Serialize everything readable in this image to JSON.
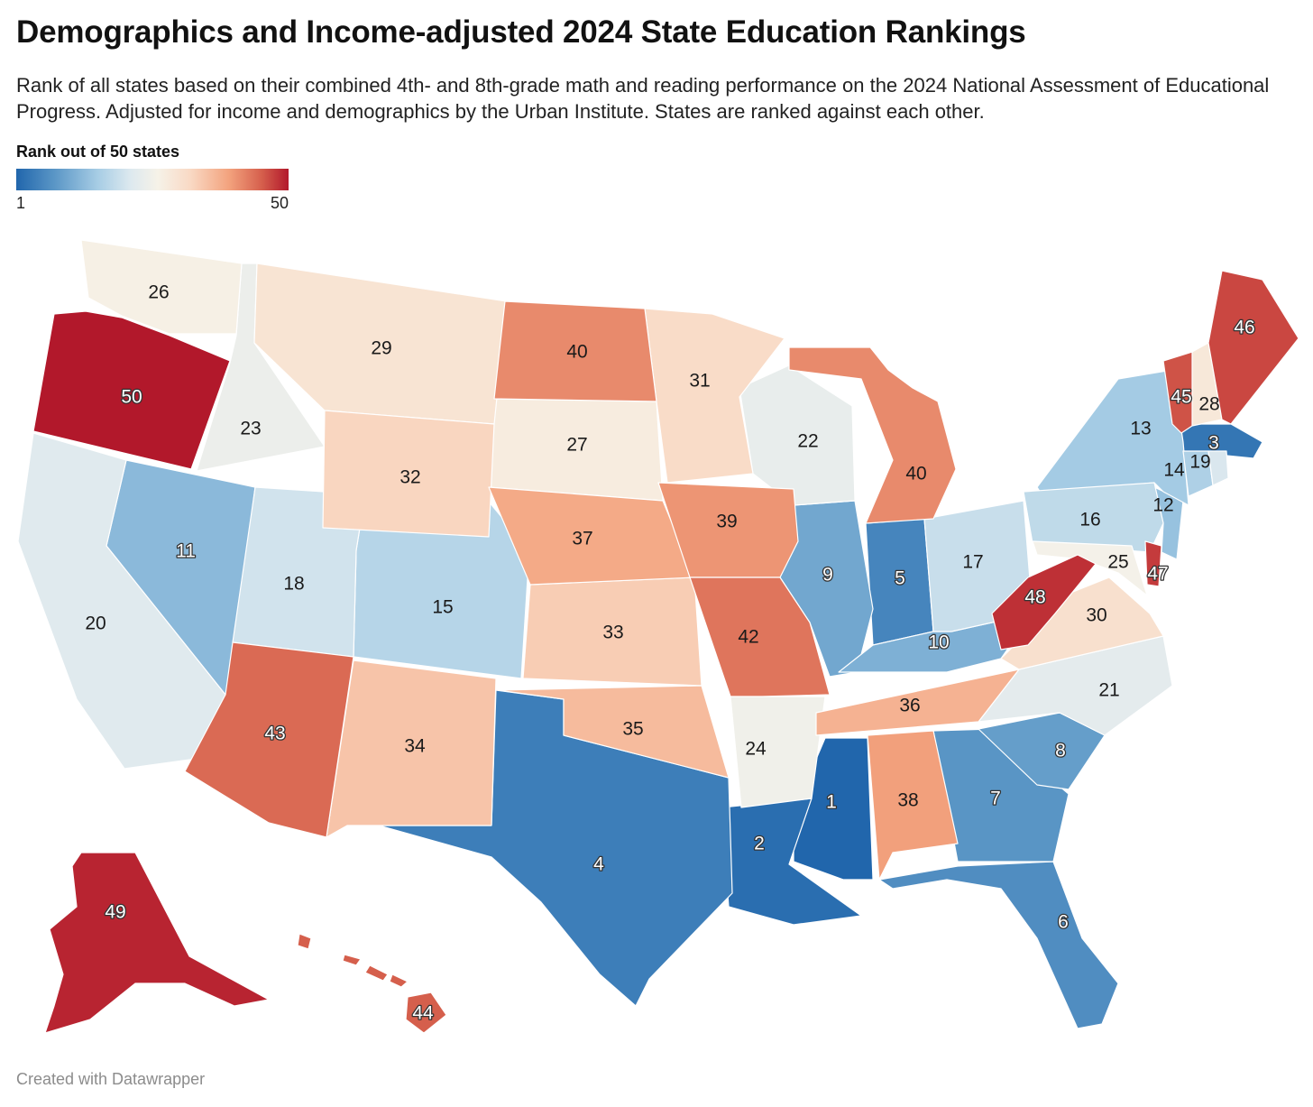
{
  "header": {
    "title": "Demographics and Income-adjusted 2024 State Education Rankings",
    "subtitle": "Rank of all states based on their combined 4th- and 8th-grade math and reading performance on the 2024 National Assessment of Educational Progress. Adjusted for income and demographics by the Urban Institute. States are ranked against each other."
  },
  "legend": {
    "title": "Rank out of 50 states",
    "min_label": "1",
    "max_label": "50",
    "color_scale": [
      "#2166ac",
      "#5a96c6",
      "#a7cde5",
      "#dde9ef",
      "#f6f2e8",
      "#f9d9c4",
      "#f3a37e",
      "#d6604d",
      "#b2182b"
    ]
  },
  "footer": {
    "credit": "Created with Datawrapper"
  },
  "map_data": {
    "type": "choropleth",
    "scale": {
      "min": 1,
      "max": 50
    },
    "regions": [
      {
        "id": "MS",
        "rank": 1
      },
      {
        "id": "LA",
        "rank": 2
      },
      {
        "id": "MA",
        "rank": 3
      },
      {
        "id": "TX",
        "rank": 4
      },
      {
        "id": "IN",
        "rank": 5
      },
      {
        "id": "FL",
        "rank": 6
      },
      {
        "id": "GA",
        "rank": 7
      },
      {
        "id": "SC",
        "rank": 8
      },
      {
        "id": "IL",
        "rank": 9
      },
      {
        "id": "KY",
        "rank": 10
      },
      {
        "id": "NV",
        "rank": 11
      },
      {
        "id": "NJ",
        "rank": 12
      },
      {
        "id": "NY",
        "rank": 13
      },
      {
        "id": "CT",
        "rank": 14
      },
      {
        "id": "CO",
        "rank": 15
      },
      {
        "id": "PA",
        "rank": 16
      },
      {
        "id": "OH",
        "rank": 17
      },
      {
        "id": "UT",
        "rank": 18
      },
      {
        "id": "RI",
        "rank": 19
      },
      {
        "id": "CA",
        "rank": 20
      },
      {
        "id": "NC",
        "rank": 21
      },
      {
        "id": "WI",
        "rank": 22
      },
      {
        "id": "ID",
        "rank": 23
      },
      {
        "id": "AR",
        "rank": 24
      },
      {
        "id": "MD",
        "rank": 25
      },
      {
        "id": "WA",
        "rank": 26
      },
      {
        "id": "SD",
        "rank": 27
      },
      {
        "id": "NH",
        "rank": 28
      },
      {
        "id": "MT",
        "rank": 29
      },
      {
        "id": "VA",
        "rank": 30
      },
      {
        "id": "MN",
        "rank": 31
      },
      {
        "id": "WY",
        "rank": 32
      },
      {
        "id": "KS",
        "rank": 33
      },
      {
        "id": "NM",
        "rank": 34
      },
      {
        "id": "OK",
        "rank": 35
      },
      {
        "id": "TN",
        "rank": 36
      },
      {
        "id": "NE",
        "rank": 37
      },
      {
        "id": "AL",
        "rank": 38
      },
      {
        "id": "IA",
        "rank": 39
      },
      {
        "id": "ND",
        "rank": 40
      },
      {
        "id": "MI",
        "rank": 40
      },
      {
        "id": "MO",
        "rank": 42
      },
      {
        "id": "AZ",
        "rank": 43
      },
      {
        "id": "HI",
        "rank": 44
      },
      {
        "id": "VT",
        "rank": 45
      },
      {
        "id": "ME",
        "rank": 46
      },
      {
        "id": "DE",
        "rank": 47
      },
      {
        "id": "WV",
        "rank": 48
      },
      {
        "id": "AK",
        "rank": 49
      },
      {
        "id": "OR",
        "rank": 50
      }
    ]
  }
}
